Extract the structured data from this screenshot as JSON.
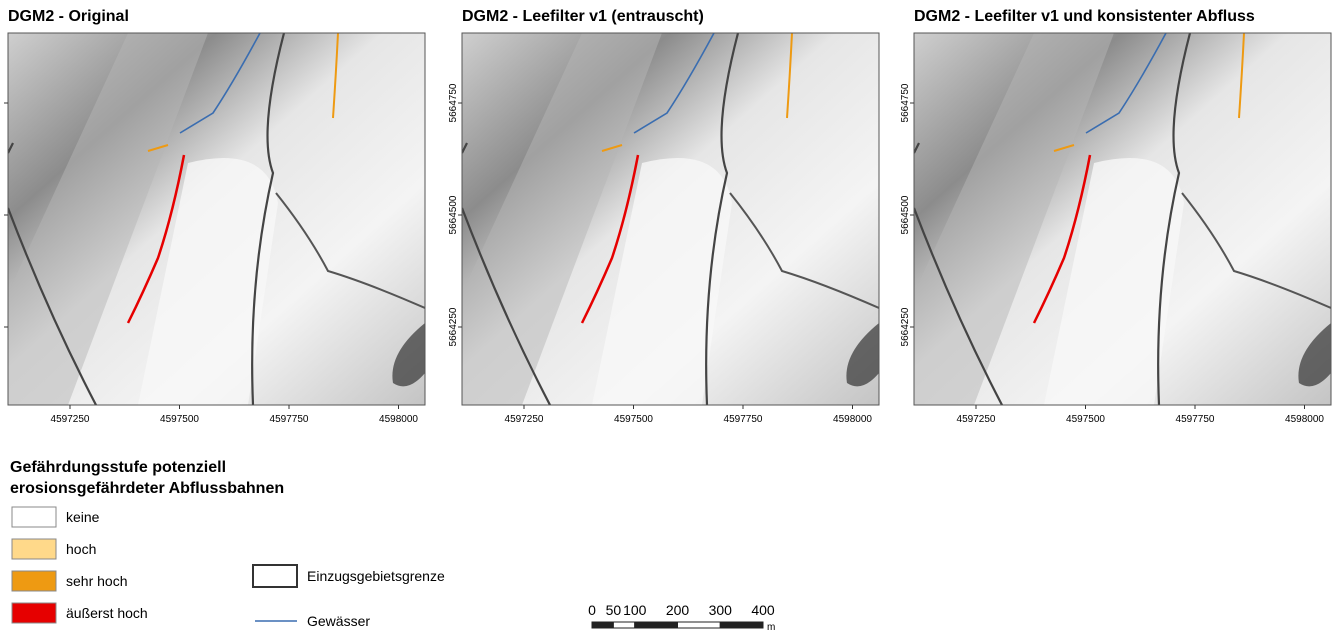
{
  "panels": [
    {
      "title": "DGM2 - Original",
      "xticks": [
        4597250,
        4597500,
        4597750,
        4598000
      ]
    },
    {
      "title": "DGM2 - Leefilter v1 (entrauscht)",
      "xticks": [
        4597250,
        4597500,
        4597750,
        4598000
      ],
      "yticks": [
        5664750,
        5664500,
        5664250
      ]
    },
    {
      "title": "DGM2 - Leefilter v1 und konsistenter Abfluss",
      "xticks": [
        4597250,
        4597500,
        4597750,
        4598000
      ],
      "yticks": [
        5664750,
        5664500,
        5664250
      ]
    }
  ],
  "legend": {
    "title_lines": [
      "Gefährdungsstufe potenziell",
      "erosionsgefährdeter Abflussbahnen"
    ],
    "classes": [
      {
        "label": "keine",
        "color": "#ffffff"
      },
      {
        "label": "hoch",
        "color": "#ffd98a"
      },
      {
        "label": "sehr hoch",
        "color": "#ee9a12"
      },
      {
        "label": "äußerst hoch",
        "color": "#e60000"
      }
    ],
    "boundary": "Einzugsgebietsgrenze",
    "stream": "Gewässer"
  },
  "scalebar": {
    "labels": [
      0,
      50,
      100,
      200,
      300,
      400
    ],
    "unit": "m"
  }
}
